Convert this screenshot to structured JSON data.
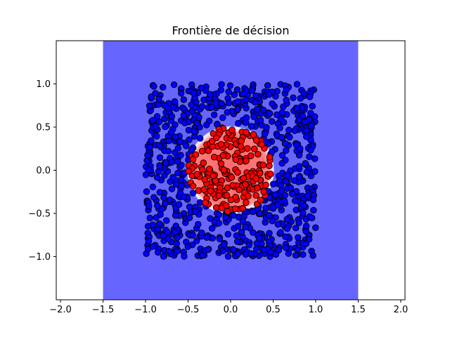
{
  "chart_data": {
    "type": "scatter",
    "title": "Frontière de décision",
    "xlabel": "",
    "ylabel": "",
    "xlim": [
      -2.05,
      2.05
    ],
    "ylim": [
      -1.5,
      1.5
    ],
    "xticks": [
      -2.0,
      -1.5,
      -1.0,
      -0.5,
      0.0,
      0.5,
      1.0,
      1.5,
      2.0
    ],
    "xtick_labels": [
      "−2.0",
      "−1.5",
      "−1.0",
      "−0.5",
      "0.0",
      "0.5",
      "1.0",
      "1.5",
      "2.0"
    ],
    "yticks": [
      -1.0,
      -0.5,
      0.0,
      0.5,
      1.0
    ],
    "ytick_labels": [
      "−1.0",
      "−0.5",
      "0.0",
      "0.5",
      "1.0"
    ],
    "grid": false,
    "legend": "none",
    "decision_region": {
      "extent_x": [
        -1.5,
        1.5
      ],
      "extent_y": [
        -1.5,
        1.5
      ],
      "outer_color": "#6666ff",
      "inner_color": "#ff7070",
      "boundary_color": "#ffffff",
      "inner_shape": "circle",
      "inner_center": [
        0.0,
        0.0
      ],
      "inner_radius": 0.46
    },
    "series": [
      {
        "class": 0,
        "color": "#0000ff",
        "edgecolor": "#000000",
        "distribution": "uniform square [-1,1]x[-1,1] outside circle r=0.5",
        "count": 780
      },
      {
        "class": 1,
        "color": "#ff0000",
        "edgecolor": "#000000",
        "distribution": "uniform inside circle r=0.5",
        "count": 200
      }
    ]
  }
}
